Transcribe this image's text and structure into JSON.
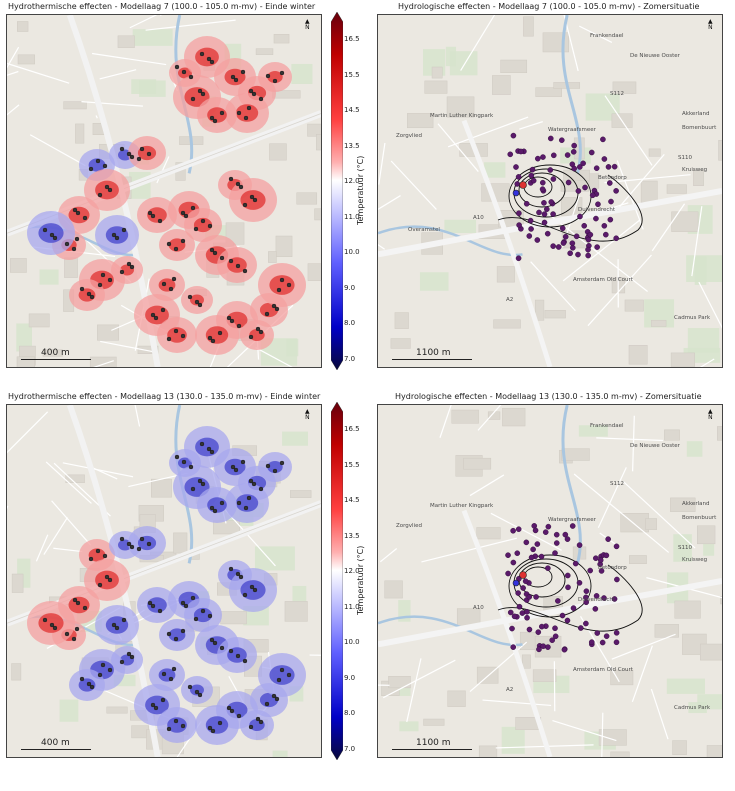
{
  "panels": [
    {
      "title": "Hydrothermische effecten - Modellaag 7 (100.0 - 105.0 m-mv) - Einde winter",
      "scale_label": "400 m",
      "colorbar": {
        "label": "Temperatuur (°C)",
        "ticks": [
          "16.5",
          "15.5",
          "14.5",
          "13.5",
          "12.0",
          "11.0",
          "10.0",
          "9.0",
          "8.0",
          "7.0"
        ]
      }
    },
    {
      "title": "Hydrologische effecten - Modellaag 7 (100.0 - 105.0 m-mv) - Zomersituatie",
      "scale_label": "1100 m",
      "places": [
        "Frankendael",
        "De Nieuwe Ooster",
        "Martin Luther Kingpark",
        "Zorgvlied",
        "Watergraafsmeer",
        "Betondorp",
        "Overamstel",
        "Duivendrecht",
        "Amsterdam Old Court",
        "Akkerland",
        "Bomenbuurt",
        "Cadmus Park",
        "A10",
        "A2",
        "S112",
        "S110",
        "Kruisweg"
      ]
    },
    {
      "title": "Hydrothermische effecten - Modellaag 13 (130.0 - 135.0 m-mv) - Einde winter",
      "scale_label": "400 m",
      "colorbar": {
        "label": "Temperatuur (°C)",
        "ticks": [
          "16.5",
          "15.5",
          "14.5",
          "13.5",
          "12.0",
          "11.0",
          "10.0",
          "9.0",
          "8.0",
          "7.0"
        ]
      }
    },
    {
      "title": "Hydrologische effecten - Modellaag 13 (130.0 - 135.0 m-mv) - Zomersituatie",
      "scale_label": "1100 m",
      "places": [
        "Frankendael",
        "De Nieuwe Ooster",
        "Martin Luther Kingpark",
        "Zorgvlied",
        "Watergraafsmeer",
        "Betondorp",
        "Duivendrecht",
        "Amsterdam Old Court",
        "Akkerland",
        "Bomenbuurt",
        "Cadmus Park",
        "A10",
        "A2",
        "S112",
        "S110",
        "Kruisweg"
      ]
    }
  ],
  "north_label": "N",
  "colors": {
    "warm": "#e03030",
    "warm_light": "#f4a0a0",
    "cold": "#4444cc",
    "cold_light": "#a8a8ee",
    "well": "#5a1a6a",
    "water": "#a9c6e0",
    "road": "#ffffff",
    "land": "#ebe8e1"
  }
}
